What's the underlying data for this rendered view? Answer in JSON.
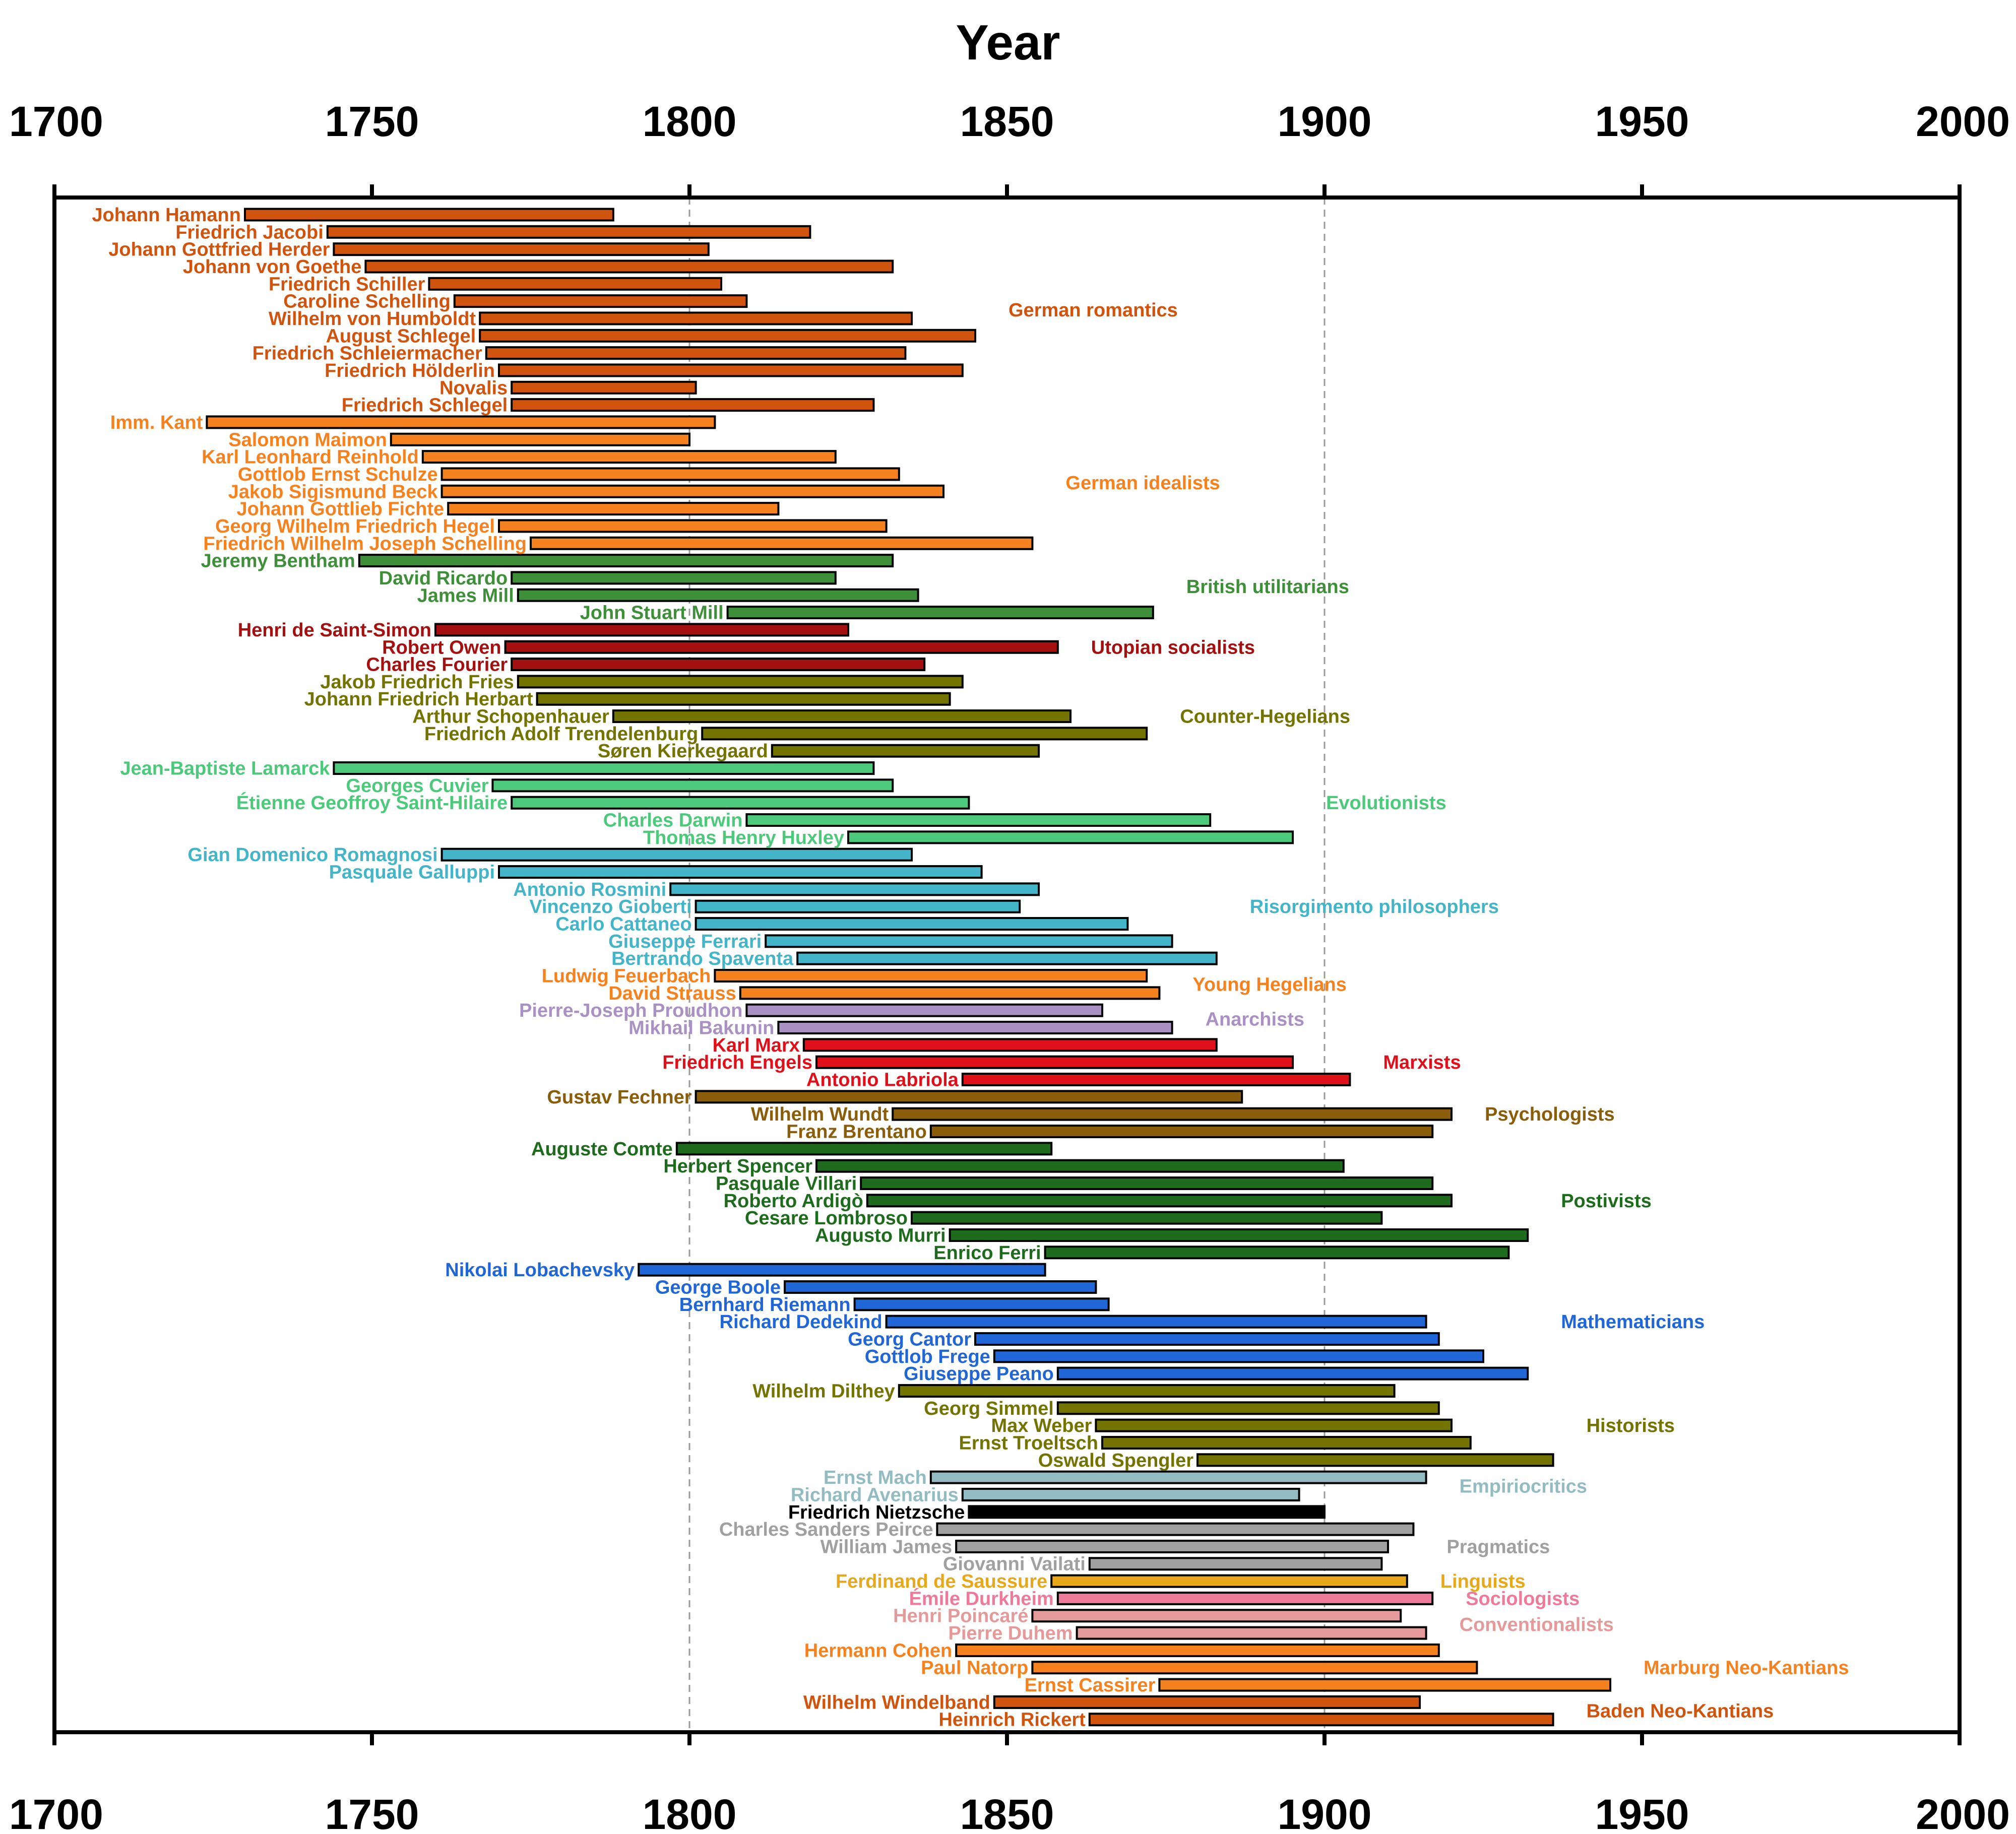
{
  "chart_data": {
    "type": "bar",
    "orientation": "horizontal-timeline",
    "xlabel": "Year",
    "xlim": [
      1700,
      2000
    ],
    "x_ticks": [
      1700,
      1750,
      1800,
      1850,
      1900,
      1950,
      2000
    ],
    "x_tick_labels": [
      "1700",
      "1750",
      "1800",
      "1850",
      "1900",
      "1950",
      "2000"
    ],
    "x_axis_position": "top-and-bottom",
    "grid": "vertical dashed at 1800 and 1900",
    "groups": [
      {
        "name": "German romantics",
        "color": "#d0540d",
        "people": [
          {
            "name": "Johann Hamann",
            "start": 1730,
            "end": 1788
          },
          {
            "name": "Friedrich Jacobi",
            "start": 1743,
            "end": 1819
          },
          {
            "name": "Johann Gottfried Herder",
            "start": 1744,
            "end": 1803
          },
          {
            "name": "Johann von Goethe",
            "start": 1749,
            "end": 1832
          },
          {
            "name": "Friedrich Schiller",
            "start": 1759,
            "end": 1805
          },
          {
            "name": "Caroline Schelling",
            "start": 1763,
            "end": 1809
          },
          {
            "name": "Wilhelm von Humboldt",
            "start": 1767,
            "end": 1835
          },
          {
            "name": "August Schlegel",
            "start": 1767,
            "end": 1845
          },
          {
            "name": "Friedrich Schleiermacher",
            "start": 1768,
            "end": 1834
          },
          {
            "name": "Friedrich Hölderlin",
            "start": 1770,
            "end": 1843
          },
          {
            "name": "Novalis",
            "start": 1772,
            "end": 1801
          },
          {
            "name": "Friedrich Schlegel",
            "start": 1772,
            "end": 1829
          }
        ]
      },
      {
        "name": "German idealists",
        "color": "#f5821f",
        "people": [
          {
            "name": "Imm. Kant",
            "start": 1724,
            "end": 1804
          },
          {
            "name": "Salomon Maimon",
            "start": 1753,
            "end": 1800
          },
          {
            "name": "Karl Leonhard Reinhold",
            "start": 1758,
            "end": 1823
          },
          {
            "name": "Gottlob Ernst Schulze",
            "start": 1761,
            "end": 1833
          },
          {
            "name": "Jakob Sigismund Beck",
            "start": 1761,
            "end": 1840
          },
          {
            "name": "Johann Gottlieb Fichte",
            "start": 1762,
            "end": 1814
          },
          {
            "name": "Georg Wilhelm Friedrich Hegel",
            "start": 1770,
            "end": 1831
          },
          {
            "name": "Friedrich Wilhelm Joseph Schelling",
            "start": 1775,
            "end": 1854
          }
        ]
      },
      {
        "name": "British utilitarians",
        "color": "#3f8f3a",
        "people": [
          {
            "name": "Jeremy Bentham",
            "start": 1748,
            "end": 1832
          },
          {
            "name": "David Ricardo",
            "start": 1772,
            "end": 1823
          },
          {
            "name": "James Mill",
            "start": 1773,
            "end": 1836
          },
          {
            "name": "John Stuart Mill",
            "start": 1806,
            "end": 1873
          }
        ]
      },
      {
        "name": "Utopian socialists",
        "color": "#a40f0f",
        "people": [
          {
            "name": "Henri de Saint-Simon",
            "start": 1760,
            "end": 1825
          },
          {
            "name": "Robert Owen",
            "start": 1771,
            "end": 1858
          },
          {
            "name": "Charles Fourier",
            "start": 1772,
            "end": 1837
          }
        ]
      },
      {
        "name": "Counter-Hegelians",
        "color": "#737300",
        "people": [
          {
            "name": "Jakob Friedrich Fries",
            "start": 1773,
            "end": 1843
          },
          {
            "name": "Johann Friedrich Herbart",
            "start": 1776,
            "end": 1841
          },
          {
            "name": "Arthur Schopenhauer",
            "start": 1788,
            "end": 1860
          },
          {
            "name": "Friedrich Adolf Trendelenburg",
            "start": 1802,
            "end": 1872
          },
          {
            "name": "Søren Kierkegaard",
            "start": 1813,
            "end": 1855
          }
        ]
      },
      {
        "name": "Evolutionists",
        "color": "#4cc97a",
        "people": [
          {
            "name": "Jean-Baptiste Lamarck",
            "start": 1744,
            "end": 1829
          },
          {
            "name": "Georges Cuvier",
            "start": 1769,
            "end": 1832
          },
          {
            "name": "Étienne Geoffroy Saint-Hilaire",
            "start": 1772,
            "end": 1844
          },
          {
            "name": "Charles Darwin",
            "start": 1809,
            "end": 1882
          },
          {
            "name": "Thomas Henry Huxley",
            "start": 1825,
            "end": 1895
          }
        ]
      },
      {
        "name": "Risorgimento philosophers",
        "color": "#44b5c8",
        "people": [
          {
            "name": "Gian Domenico Romagnosi",
            "start": 1761,
            "end": 1835
          },
          {
            "name": "Pasquale Galluppi",
            "start": 1770,
            "end": 1846
          },
          {
            "name": "Antonio Rosmini",
            "start": 1797,
            "end": 1855
          },
          {
            "name": "Vincenzo Gioberti",
            "start": 1801,
            "end": 1852
          },
          {
            "name": "Carlo Cattaneo",
            "start": 1801,
            "end": 1869
          },
          {
            "name": "Giuseppe Ferrari",
            "start": 1812,
            "end": 1876
          },
          {
            "name": "Bertrando Spaventa",
            "start": 1817,
            "end": 1883
          }
        ]
      },
      {
        "name": "Young Hegelians",
        "color": "#f5821f",
        "people": [
          {
            "name": "Ludwig Feuerbach",
            "start": 1804,
            "end": 1872
          },
          {
            "name": "David Strauss",
            "start": 1808,
            "end": 1874
          }
        ]
      },
      {
        "name": "Anarchists",
        "color": "#a991c4",
        "people": [
          {
            "name": "Pierre-Joseph Proudhon",
            "start": 1809,
            "end": 1865
          },
          {
            "name": "Mikhail Bakunin",
            "start": 1814,
            "end": 1876
          }
        ]
      },
      {
        "name": "Marxists",
        "color": "#e0101a",
        "people": [
          {
            "name": "Karl Marx",
            "start": 1818,
            "end": 1883
          },
          {
            "name": "Friedrich Engels",
            "start": 1820,
            "end": 1895
          },
          {
            "name": "Antonio Labriola",
            "start": 1843,
            "end": 1904
          }
        ]
      },
      {
        "name": "Psychologists",
        "color": "#8a5d0a",
        "people": [
          {
            "name": "Gustav Fechner",
            "start": 1801,
            "end": 1887
          },
          {
            "name": "Wilhelm Wundt",
            "start": 1832,
            "end": 1920
          },
          {
            "name": "Franz Brentano",
            "start": 1838,
            "end": 1917
          }
        ]
      },
      {
        "name": "Postivists",
        "color": "#1e6b1e",
        "people": [
          {
            "name": "Auguste Comte",
            "start": 1798,
            "end": 1857
          },
          {
            "name": "Herbert Spencer",
            "start": 1820,
            "end": 1903
          },
          {
            "name": "Pasquale Villari",
            "start": 1827,
            "end": 1917
          },
          {
            "name": "Roberto Ardigò",
            "start": 1828,
            "end": 1920
          },
          {
            "name": "Cesare Lombroso",
            "start": 1835,
            "end": 1909
          },
          {
            "name": "Augusto Murri",
            "start": 1841,
            "end": 1932
          },
          {
            "name": "Enrico Ferri",
            "start": 1856,
            "end": 1929
          }
        ]
      },
      {
        "name": "Mathematicians",
        "color": "#2166d6",
        "people": [
          {
            "name": "Nikolai Lobachevsky",
            "start": 1792,
            "end": 1856
          },
          {
            "name": "George Boole",
            "start": 1815,
            "end": 1864
          },
          {
            "name": "Bernhard Riemann",
            "start": 1826,
            "end": 1866
          },
          {
            "name": "Richard Dedekind",
            "start": 1831,
            "end": 1916
          },
          {
            "name": "Georg Cantor",
            "start": 1845,
            "end": 1918
          },
          {
            "name": "Gottlob Frege",
            "start": 1848,
            "end": 1925
          },
          {
            "name": "Giuseppe Peano",
            "start": 1858,
            "end": 1932
          }
        ]
      },
      {
        "name": "Historists",
        "color": "#737300",
        "people": [
          {
            "name": "Wilhelm Dilthey",
            "start": 1833,
            "end": 1911
          },
          {
            "name": "Georg Simmel",
            "start": 1858,
            "end": 1918
          },
          {
            "name": "Max Weber",
            "start": 1864,
            "end": 1920
          },
          {
            "name": "Ernst Troeltsch",
            "start": 1865,
            "end": 1923
          },
          {
            "name": "Oswald Spengler",
            "start": 1880,
            "end": 1936
          }
        ]
      },
      {
        "name": "Empiriocritics",
        "color": "#93bcc2",
        "people": [
          {
            "name": "Ernst Mach",
            "start": 1838,
            "end": 1916
          },
          {
            "name": "Richard Avenarius",
            "start": 1843,
            "end": 1896
          }
        ]
      },
      {
        "name": "",
        "color": "#000000",
        "people": [
          {
            "name": "Friedrich Nietzsche",
            "start": 1844,
            "end": 1900
          }
        ]
      },
      {
        "name": "Pragmatics",
        "color": "#a0a0a0",
        "people": [
          {
            "name": "Charles Sanders Peirce",
            "start": 1839,
            "end": 1914
          },
          {
            "name": "William James",
            "start": 1842,
            "end": 1910
          },
          {
            "name": "Giovanni Vailati",
            "start": 1863,
            "end": 1909
          }
        ]
      },
      {
        "name": "Linguists",
        "color": "#e8a81c",
        "people": [
          {
            "name": "Ferdinand de Saussure",
            "start": 1857,
            "end": 1913
          }
        ]
      },
      {
        "name": "Sociologists",
        "color": "#ee7a9a",
        "people": [
          {
            "name": "Émile Durkheim",
            "start": 1858,
            "end": 1917
          }
        ]
      },
      {
        "name": "Conventionalists",
        "color": "#e59a9a",
        "people": [
          {
            "name": "Henri Poincaré",
            "start": 1854,
            "end": 1912
          },
          {
            "name": "Pierre Duhem",
            "start": 1861,
            "end": 1916
          }
        ]
      },
      {
        "name": "Marburg Neo-Kantians",
        "color": "#f5821f",
        "people": [
          {
            "name": "Hermann Cohen",
            "start": 1842,
            "end": 1918
          },
          {
            "name": "Paul Natorp",
            "start": 1854,
            "end": 1924
          },
          {
            "name": "Ernst Cassirer",
            "start": 1874,
            "end": 1945
          }
        ]
      },
      {
        "name": "Baden Neo-Kantians",
        "color": "#d0540d",
        "people": [
          {
            "name": "Wilhelm Windelband",
            "start": 1848,
            "end": 1915
          },
          {
            "name": "Heinrich Rickert",
            "start": 1863,
            "end": 1936
          }
        ]
      }
    ]
  }
}
